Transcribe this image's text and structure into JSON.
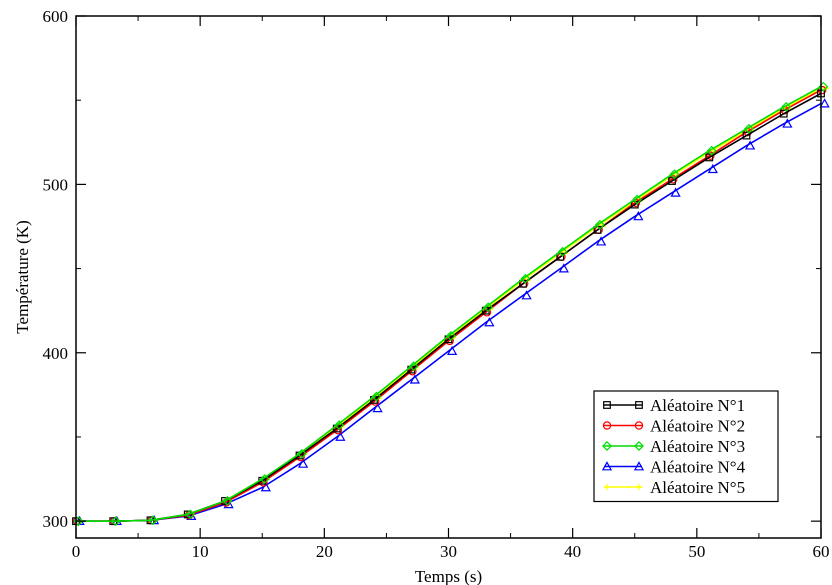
{
  "chart_data": {
    "type": "line",
    "title": "",
    "xlabel": "Temps (s)",
    "ylabel": "Température (K)",
    "xlim": [
      0,
      60
    ],
    "ylim": [
      290,
      600
    ],
    "xticks": [
      0,
      10,
      20,
      30,
      40,
      50,
      60
    ],
    "yticks": [
      300,
      400,
      500,
      600
    ],
    "x_tick_labels": [
      "0",
      "10",
      "20",
      "30",
      "40",
      "50",
      "60"
    ],
    "y_tick_labels": [
      "300",
      "400",
      "500",
      "600"
    ],
    "grid": false,
    "legend_position": "bottom-right",
    "x": [
      0,
      3,
      6,
      9,
      12,
      15,
      18,
      21,
      24,
      27,
      30,
      33,
      36,
      39,
      42,
      45,
      48,
      51,
      54,
      57,
      60
    ],
    "series": [
      {
        "name": "Aléatoire N°1",
        "color": "#000000",
        "marker": "square",
        "values": [
          300,
          300,
          300.5,
          304,
          312,
          324,
          339,
          355,
          372,
          390,
          408,
          425,
          441,
          457,
          473,
          488,
          502,
          516,
          529,
          542,
          554
        ]
      },
      {
        "name": "Aléatoire N°2",
        "color": "#ff0000",
        "marker": "circle",
        "values": [
          300,
          300,
          300.5,
          303.5,
          311,
          323,
          338,
          354,
          371,
          389,
          407,
          424,
          441,
          457,
          473,
          489,
          503,
          517,
          531,
          544,
          556
        ]
      },
      {
        "name": "Aléatoire N°3",
        "color": "#00dd00",
        "marker": "diamond",
        "values": [
          300,
          300,
          300.5,
          304,
          312,
          325,
          340,
          357,
          374,
          392,
          410,
          427,
          444,
          460,
          476,
          491,
          506,
          520,
          533,
          546,
          558
        ]
      },
      {
        "name": "Aléatoire N°4",
        "color": "#0000ff",
        "marker": "triangle",
        "values": [
          300,
          300,
          300.5,
          303,
          310,
          320,
          334,
          350,
          367,
          384,
          401,
          418,
          434,
          450,
          466,
          481,
          495,
          509,
          523,
          536,
          548
        ]
      },
      {
        "name": "Aléatoire N°5",
        "color": "#ffff00",
        "marker": "plus",
        "values": [
          300,
          300,
          300.5,
          304,
          312,
          325,
          340,
          356,
          373,
          391,
          409,
          426,
          443,
          459,
          475,
          490,
          505,
          519,
          532,
          545,
          557
        ]
      }
    ]
  }
}
